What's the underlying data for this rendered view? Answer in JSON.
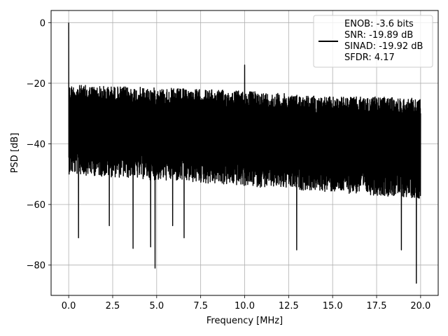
{
  "chart_data": {
    "type": "line",
    "title": "",
    "xlabel": "Frequency [MHz]",
    "ylabel": "PSD [dB]",
    "xlim": [
      -1.0,
      21.0
    ],
    "ylim": [
      -90,
      4
    ],
    "x_ticks": [
      0.0,
      2.5,
      5.0,
      7.5,
      10.0,
      12.5,
      15.0,
      17.5,
      20.0
    ],
    "x_tick_labels": [
      "0.0",
      "2.5",
      "5.0",
      "7.5",
      "10.0",
      "12.5",
      "15.0",
      "17.5",
      "20.0"
    ],
    "y_ticks": [
      0,
      -20,
      -40,
      -60,
      -80
    ],
    "y_tick_labels": [
      "0",
      "−20",
      "−40",
      "−60",
      "−80"
    ],
    "grid": true,
    "legend_position": "upper-right",
    "series": [
      {
        "name": "ENOB: -3.6 bits\nSNR: -19.89 dB\nSINAD: -19.92 dB\nSFDR: 4.17",
        "color": "#000000",
        "frequency_range": [
          0.0,
          20.0
        ],
        "upper_envelope": [
          [
            0.0,
            -20.5
          ],
          [
            2.5,
            -21.0
          ],
          [
            5.0,
            -21.5
          ],
          [
            7.5,
            -22.0
          ],
          [
            10.0,
            -22.5
          ],
          [
            12.5,
            -23.5
          ],
          [
            15.0,
            -24.5
          ],
          [
            17.5,
            -24.5
          ],
          [
            20.0,
            -25.0
          ]
        ],
        "lower_band": [
          [
            0.0,
            -46
          ],
          [
            20.0,
            -54
          ]
        ],
        "peaks": [
          {
            "x": 0.0,
            "y": 0
          },
          {
            "x": 10.0,
            "y": -14
          }
        ],
        "notable_dips": [
          {
            "x": 0.55,
            "y": -71
          },
          {
            "x": 2.3,
            "y": -67
          },
          {
            "x": 3.65,
            "y": -74.5
          },
          {
            "x": 4.65,
            "y": -74
          },
          {
            "x": 4.9,
            "y": -81
          },
          {
            "x": 5.9,
            "y": -67
          },
          {
            "x": 6.55,
            "y": -71
          },
          {
            "x": 12.95,
            "y": -75
          },
          {
            "x": 18.9,
            "y": -75
          },
          {
            "x": 19.75,
            "y": -86
          }
        ]
      }
    ],
    "legend_lines": [
      "ENOB: -3.6 bits",
      "SNR: -19.89 dB",
      "SINAD: -19.92 dB",
      "SFDR: 4.17"
    ]
  }
}
